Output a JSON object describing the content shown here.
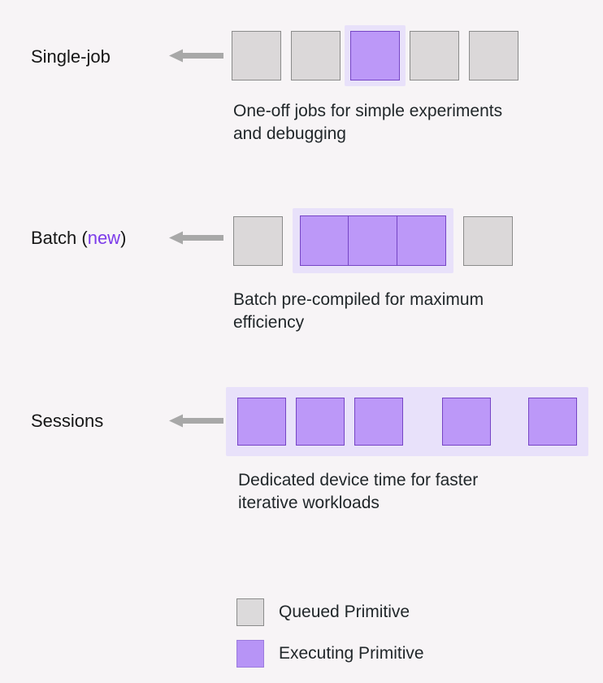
{
  "colors": {
    "background": "#f7f4f6",
    "queued_fill": "#dbd8d9",
    "queued_border": "#8b8b8b",
    "executing_fill": "#bc98f8",
    "executing_border": "#7645c5",
    "halo": "#e8e1fa",
    "arrow": "#a8a8a8",
    "label_text": "#161616",
    "description_text": "#21272a",
    "new_text": "#7c3bea"
  },
  "rows": [
    {
      "id": "single-job",
      "label": "Single-job",
      "description": "One-off jobs for simple experiments and debugging",
      "description_lines": [
        "One-off jobs for simple experiments",
        "and debugging"
      ],
      "blocks": [
        {
          "kind": "queued"
        },
        {
          "kind": "queued"
        },
        {
          "kind": "executing",
          "halo": true
        },
        {
          "kind": "queued"
        },
        {
          "kind": "queued"
        }
      ]
    },
    {
      "id": "batch",
      "label_prefix": "Batch (",
      "label_new": "new",
      "label_suffix": ")",
      "description": "Batch pre-compiled for maximum efficiency",
      "description_lines": [
        "Batch pre-compiled for maximum",
        "efficiency"
      ],
      "blocks": [
        {
          "kind": "queued"
        },
        {
          "kind": "executing-group",
          "count": 3,
          "halo": true
        },
        {
          "kind": "queued"
        }
      ]
    },
    {
      "id": "sessions",
      "label": "Sessions",
      "description": "Dedicated device time for faster iterative workloads",
      "description_lines": [
        "Dedicated device time for faster",
        "iterative workloads"
      ],
      "halo_wrap": true,
      "blocks": [
        {
          "kind": "executing"
        },
        {
          "kind": "executing"
        },
        {
          "kind": "executing",
          "gap_after": 36
        },
        {
          "kind": "executing",
          "gap_after": 34
        },
        {
          "kind": "executing"
        }
      ]
    }
  ],
  "legend": {
    "items": [
      {
        "id": "queued",
        "label": "Queued Primitive"
      },
      {
        "id": "executing",
        "label": "Executing Primitive"
      }
    ]
  }
}
